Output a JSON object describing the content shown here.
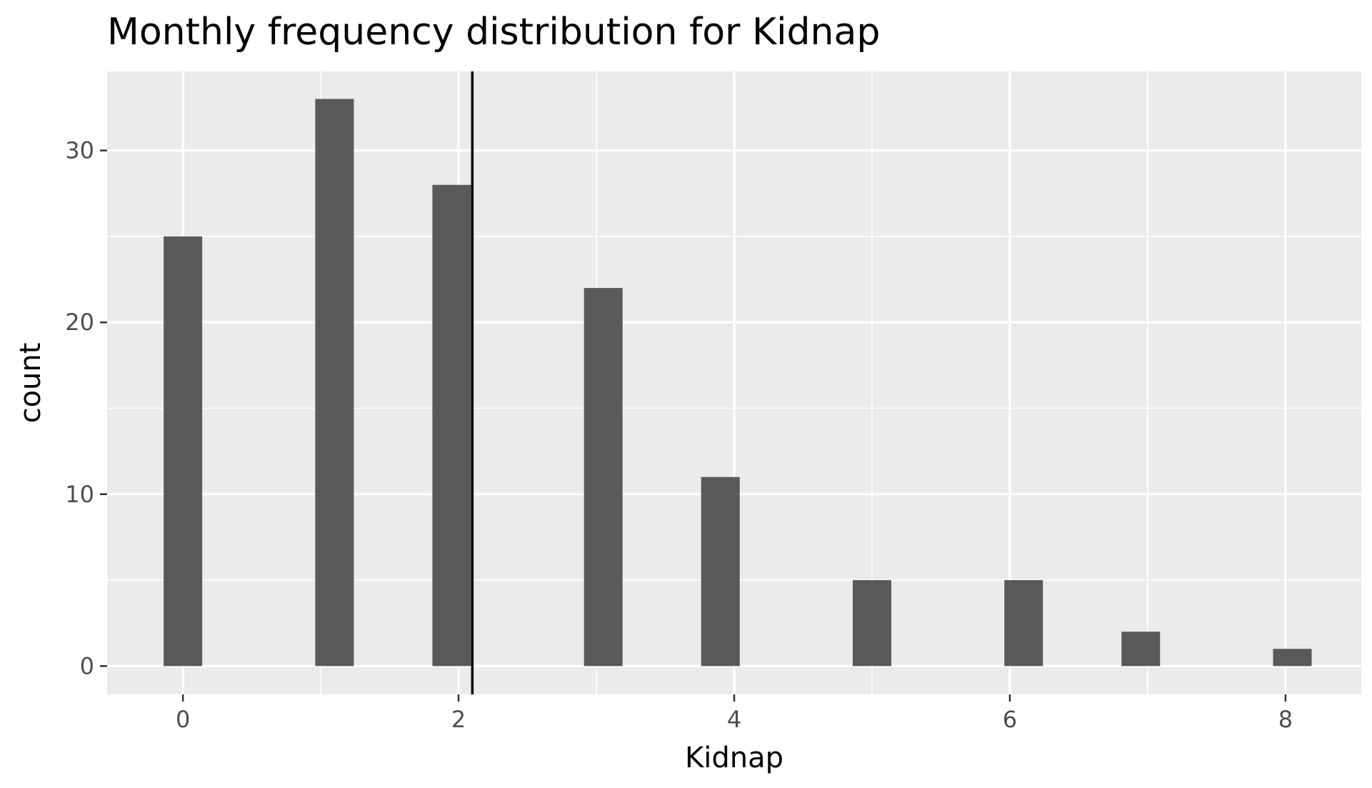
{
  "chart_data": {
    "type": "bar",
    "title": "Monthly frequency distribution for Kidnap",
    "xlabel": "Kidnap",
    "ylabel": "count",
    "x": [
      0,
      1,
      2,
      3,
      4,
      5,
      6,
      7,
      8
    ],
    "values": [
      25,
      33,
      28,
      22,
      11,
      5,
      5,
      2,
      1
    ],
    "bar_x_centers": [
      0,
      1.1,
      1.95,
      3.05,
      3.9,
      5.0,
      6.1,
      6.95,
      8.05
    ],
    "xlim": [
      -0.55,
      8.55
    ],
    "ylim": [
      -1.65,
      34.6
    ],
    "x_ticks": [
      0,
      2,
      4,
      6,
      8
    ],
    "x_tick_labels": [
      "0",
      "2",
      "4",
      "6",
      "8"
    ],
    "y_ticks": [
      0,
      10,
      20,
      30
    ],
    "y_tick_labels": [
      "0",
      "10",
      "20",
      "30"
    ],
    "vline_x": 2.1,
    "grid": true,
    "colors": {
      "panel_background": "#ebebeb",
      "grid_line": "#ffffff",
      "bar": "#595959",
      "vline": "#000000",
      "tick_label": "#4d4d4d",
      "tick_mark": "#333333"
    }
  }
}
